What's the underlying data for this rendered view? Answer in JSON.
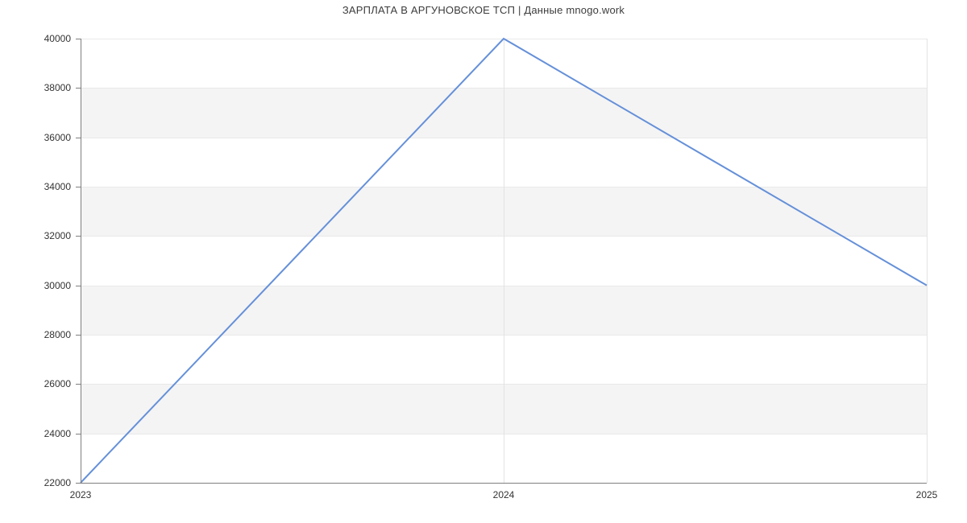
{
  "chart_data": {
    "type": "line",
    "title": "ЗАРПЛАТА В АРГУНОВСКОЕ ТСП | Данные mnogo.work",
    "categories": [
      "2023",
      "2024",
      "2025"
    ],
    "series": [
      {
        "values": [
          22000,
          40000,
          30000
        ]
      }
    ],
    "xlabel": "",
    "ylabel": "",
    "ylim": [
      22000,
      40000
    ],
    "ytick_step": 2000,
    "ytick_labels": [
      "22000",
      "24000",
      "26000",
      "28000",
      "30000",
      "32000",
      "34000",
      "36000",
      "38000",
      "40000"
    ],
    "legend": "none",
    "grid": "alternating-horizontal-bands with hairlines every 2000 and vertical gridlines at each year",
    "colors": {
      "line": "#6590d9",
      "band": "#f4f4f4",
      "hairline": "#e9e9e9",
      "vgrid": "#e3e3e3",
      "axis": "#7f7f7f",
      "text": "#333333",
      "title": "#3c3c3c",
      "background": "#ffffff"
    }
  }
}
